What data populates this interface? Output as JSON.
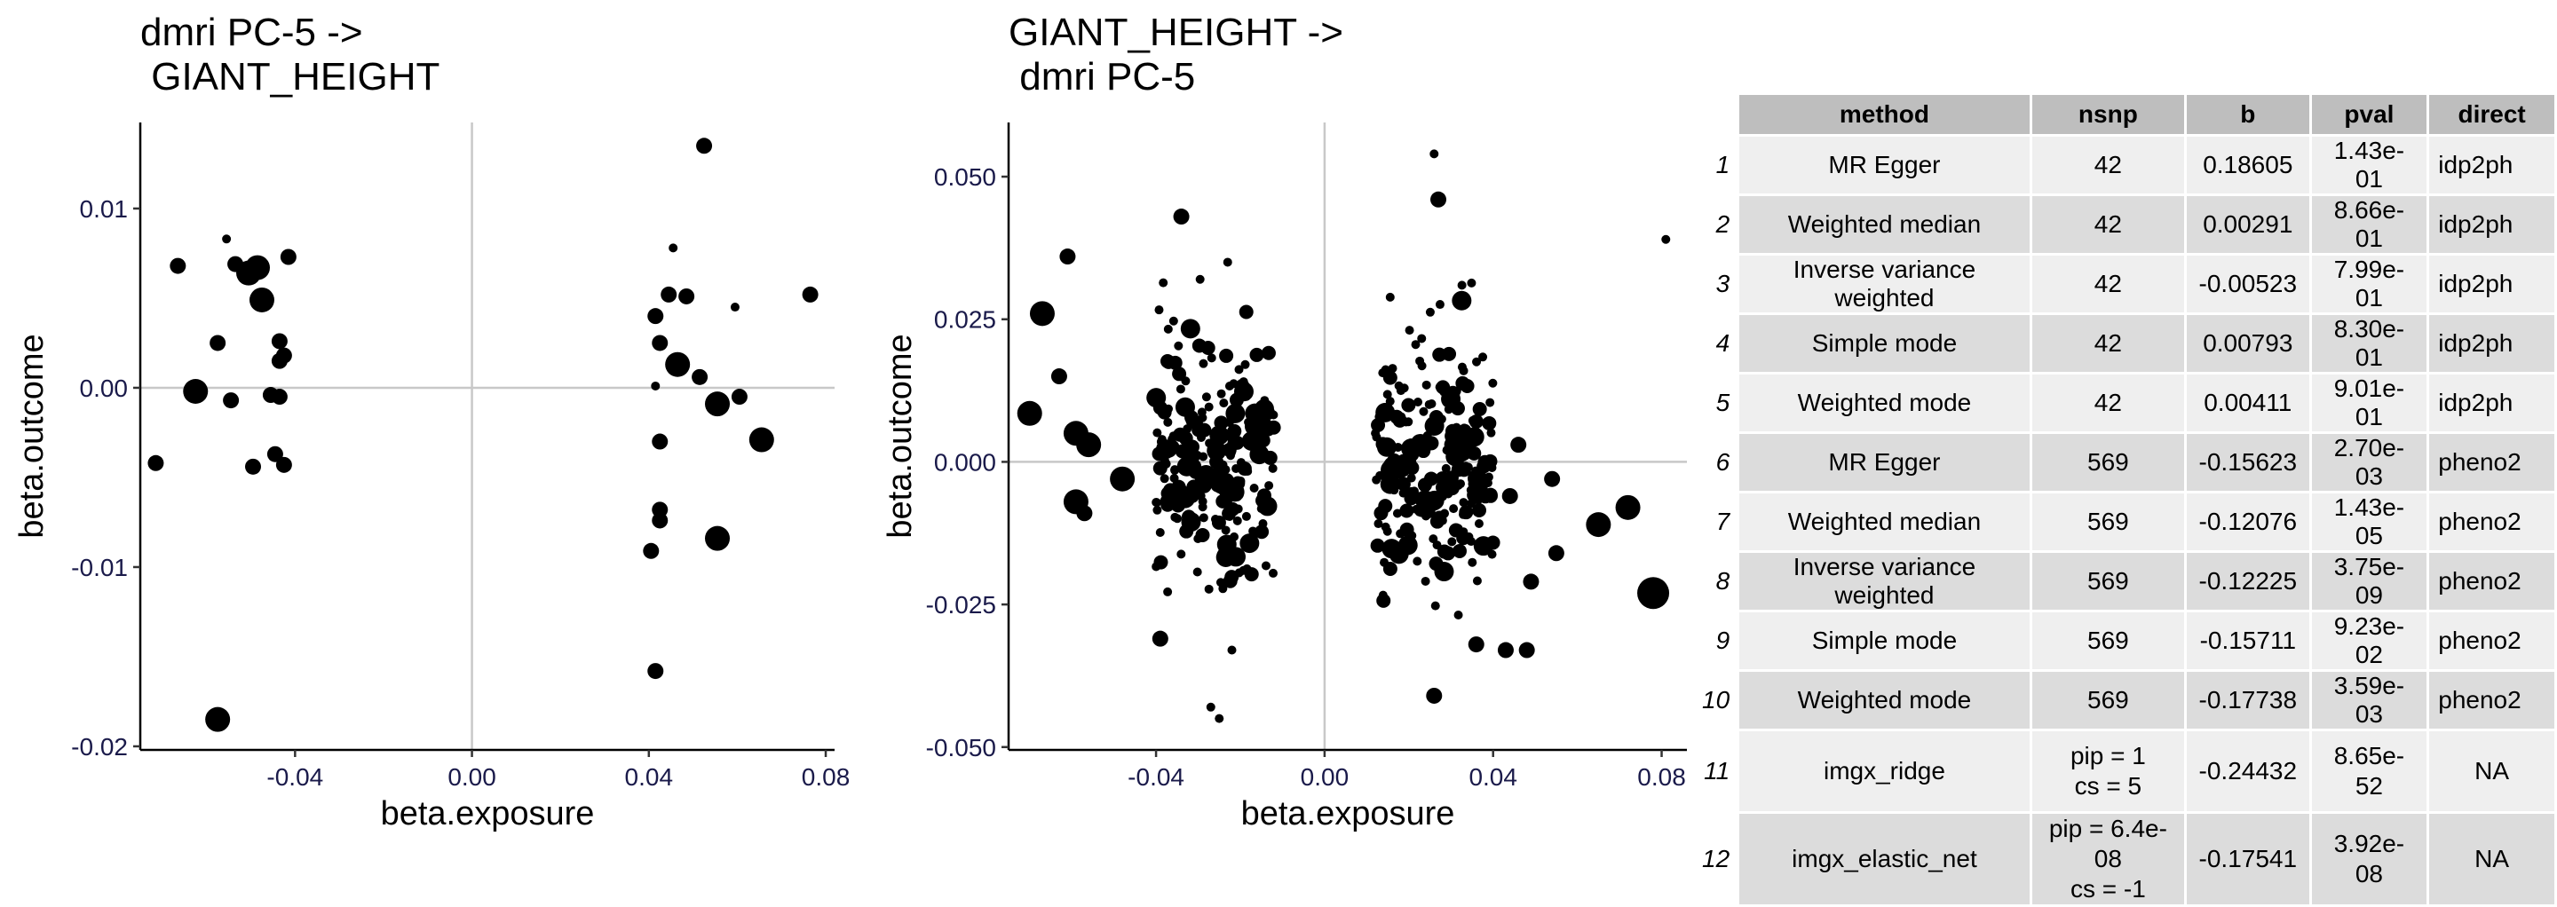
{
  "chart_data": [
    {
      "type": "scatter",
      "title": "dmri PC-5 ->\n GIANT_HEIGHT",
      "xlabel": "beta.exposure",
      "ylabel": "beta.outcome",
      "xlim": [
        -0.075,
        0.082
      ],
      "ylim": [
        -0.0202,
        0.0148
      ],
      "xticks": [
        -0.04,
        0.0,
        0.04,
        0.08
      ],
      "xtick_labels": [
        "-0.04",
        "0.00",
        "0.04",
        "0.08"
      ],
      "yticks": [
        -0.02,
        -0.01,
        0.0,
        0.01
      ],
      "ytick_labels": [
        "-0.02",
        "-0.01",
        "0.00",
        "0.01"
      ],
      "grid": false,
      "reference_lines": {
        "x": 0,
        "y": 0
      },
      "points": [
        {
          "x": -0.0575,
          "y": -0.0185,
          "s": 3
        },
        {
          "x": -0.0535,
          "y": 0.0069,
          "s": 2
        },
        {
          "x": -0.0665,
          "y": 0.0068,
          "s": 2
        },
        {
          "x": -0.0485,
          "y": 0.0067,
          "s": 3
        },
        {
          "x": -0.0505,
          "y": 0.0064,
          "s": 3
        },
        {
          "x": -0.0475,
          "y": 0.0049,
          "s": 3
        },
        {
          "x": -0.0415,
          "y": 0.0073,
          "s": 2
        },
        {
          "x": -0.0555,
          "y": 0.0083,
          "s": 1
        },
        {
          "x": -0.0575,
          "y": 0.0025,
          "s": 2
        },
        {
          "x": -0.0435,
          "y": 0.0026,
          "s": 2
        },
        {
          "x": -0.0425,
          "y": 0.0018,
          "s": 2
        },
        {
          "x": -0.0435,
          "y": 0.0015,
          "s": 2
        },
        {
          "x": -0.0625,
          "y": -0.0002,
          "s": 3
        },
        {
          "x": -0.0545,
          "y": -0.0007,
          "s": 2
        },
        {
          "x": -0.0455,
          "y": -0.0004,
          "s": 2
        },
        {
          "x": -0.0435,
          "y": -0.0005,
          "s": 2
        },
        {
          "x": -0.0715,
          "y": -0.0042,
          "s": 2
        },
        {
          "x": -0.0495,
          "y": -0.0044,
          "s": 2
        },
        {
          "x": -0.0445,
          "y": -0.0037,
          "s": 2
        },
        {
          "x": -0.0425,
          "y": -0.0043,
          "s": 2
        },
        {
          "x": 0.0525,
          "y": 0.0135,
          "s": 2
        },
        {
          "x": 0.0455,
          "y": 0.0078,
          "s": 1
        },
        {
          "x": 0.0765,
          "y": 0.0052,
          "s": 2
        },
        {
          "x": 0.0445,
          "y": 0.0052,
          "s": 2
        },
        {
          "x": 0.0485,
          "y": 0.0051,
          "s": 2
        },
        {
          "x": 0.0415,
          "y": 0.004,
          "s": 2
        },
        {
          "x": 0.0595,
          "y": 0.0045,
          "s": 1
        },
        {
          "x": 0.0425,
          "y": 0.0025,
          "s": 2
        },
        {
          "x": 0.0465,
          "y": 0.0013,
          "s": 3
        },
        {
          "x": 0.0515,
          "y": 0.0006,
          "s": 2
        },
        {
          "x": 0.0415,
          "y": 0.0001,
          "s": 1
        },
        {
          "x": 0.0555,
          "y": -0.0009,
          "s": 3
        },
        {
          "x": 0.0605,
          "y": -0.0005,
          "s": 2
        },
        {
          "x": 0.0425,
          "y": -0.003,
          "s": 2
        },
        {
          "x": 0.0655,
          "y": -0.0029,
          "s": 3
        },
        {
          "x": 0.0425,
          "y": -0.0068,
          "s": 2
        },
        {
          "x": 0.0425,
          "y": -0.0074,
          "s": 2
        },
        {
          "x": 0.0555,
          "y": -0.0084,
          "s": 3
        },
        {
          "x": 0.0405,
          "y": -0.0091,
          "s": 2
        },
        {
          "x": 0.0415,
          "y": -0.0158,
          "s": 2
        }
      ]
    },
    {
      "type": "scatter",
      "title": "GIANT_HEIGHT ->\n dmri PC-5",
      "xlabel": "beta.exposure",
      "ylabel": "beta.outcome",
      "xlim": [
        -0.075,
        0.086
      ],
      "ylim": [
        -0.0505,
        0.0595
      ],
      "xticks": [
        -0.04,
        0.0,
        0.04,
        0.08
      ],
      "xtick_labels": [
        "-0.04",
        "0.00",
        "0.04",
        "0.08"
      ],
      "yticks": [
        -0.05,
        -0.025,
        0.0,
        0.025,
        0.05
      ],
      "ytick_labels": [
        "-0.050",
        "-0.025",
        "0.000",
        "0.025",
        "0.050"
      ],
      "grid": false,
      "reference_lines": {
        "x": 0,
        "y": 0
      },
      "cluster_neg": {
        "x_range": [
          -0.04,
          -0.012
        ],
        "y_sd": 0.011
      },
      "cluster_pos": {
        "x_range": [
          0.012,
          0.04
        ],
        "y_sd": 0.011
      },
      "points": [
        {
          "x": -0.067,
          "y": 0.026,
          "s": 3
        },
        {
          "x": -0.061,
          "y": 0.036,
          "s": 2
        },
        {
          "x": -0.034,
          "y": 0.043,
          "s": 2
        },
        {
          "x": -0.023,
          "y": 0.035,
          "s": 1
        },
        {
          "x": -0.07,
          "y": 0.0085,
          "s": 3
        },
        {
          "x": -0.063,
          "y": 0.015,
          "s": 2
        },
        {
          "x": -0.059,
          "y": 0.005,
          "s": 3
        },
        {
          "x": -0.056,
          "y": 0.003,
          "s": 3
        },
        {
          "x": -0.059,
          "y": -0.007,
          "s": 3
        },
        {
          "x": -0.057,
          "y": -0.009,
          "s": 2
        },
        {
          "x": -0.048,
          "y": -0.003,
          "s": 3
        },
        {
          "x": -0.039,
          "y": -0.031,
          "s": 2
        },
        {
          "x": -0.027,
          "y": -0.043,
          "s": 1
        },
        {
          "x": -0.025,
          "y": -0.045,
          "s": 1
        },
        {
          "x": -0.022,
          "y": -0.033,
          "s": 1
        },
        {
          "x": 0.026,
          "y": 0.054,
          "s": 1
        },
        {
          "x": 0.027,
          "y": 0.046,
          "s": 2
        },
        {
          "x": 0.026,
          "y": -0.041,
          "s": 2
        },
        {
          "x": 0.036,
          "y": -0.032,
          "s": 2
        },
        {
          "x": 0.043,
          "y": -0.033,
          "s": 2
        },
        {
          "x": 0.048,
          "y": -0.033,
          "s": 2
        },
        {
          "x": 0.049,
          "y": -0.021,
          "s": 2
        },
        {
          "x": 0.055,
          "y": -0.016,
          "s": 2
        },
        {
          "x": 0.065,
          "y": -0.011,
          "s": 3
        },
        {
          "x": 0.072,
          "y": -0.008,
          "s": 3
        },
        {
          "x": 0.078,
          "y": -0.023,
          "s": 4
        },
        {
          "x": 0.081,
          "y": 0.039,
          "s": 1
        },
        {
          "x": 0.054,
          "y": -0.003,
          "s": 2
        },
        {
          "x": 0.046,
          "y": 0.003,
          "s": 2
        },
        {
          "x": 0.044,
          "y": -0.006,
          "s": 2
        }
      ]
    }
  ],
  "table": {
    "headers": [
      "method",
      "nsnp",
      "b",
      "pval",
      "direct"
    ],
    "rows": [
      {
        "idx": "1",
        "method": "MR Egger",
        "nsnp": "42",
        "b": "0.18605",
        "pval": "1.43e-01",
        "direct": "idp2ph"
      },
      {
        "idx": "2",
        "method": "Weighted median",
        "nsnp": "42",
        "b": "0.00291",
        "pval": "8.66e-01",
        "direct": "idp2ph"
      },
      {
        "idx": "3",
        "method": "Inverse variance weighted",
        "nsnp": "42",
        "b": "-0.00523",
        "pval": "7.99e-01",
        "direct": "idp2ph"
      },
      {
        "idx": "4",
        "method": "Simple mode",
        "nsnp": "42",
        "b": "0.00793",
        "pval": "8.30e-01",
        "direct": "idp2ph"
      },
      {
        "idx": "5",
        "method": "Weighted mode",
        "nsnp": "42",
        "b": "0.00411",
        "pval": "9.01e-01",
        "direct": "idp2ph"
      },
      {
        "idx": "6",
        "method": "MR Egger",
        "nsnp": "569",
        "b": "-0.15623",
        "pval": "2.70e-03",
        "direct": "pheno2"
      },
      {
        "idx": "7",
        "method": "Weighted median",
        "nsnp": "569",
        "b": "-0.12076",
        "pval": "1.43e-05",
        "direct": "pheno2"
      },
      {
        "idx": "8",
        "method": "Inverse variance weighted",
        "nsnp": "569",
        "b": "-0.12225",
        "pval": "3.75e-09",
        "direct": "pheno2"
      },
      {
        "idx": "9",
        "method": "Simple mode",
        "nsnp": "569",
        "b": "-0.15711",
        "pval": "9.23e-02",
        "direct": "pheno2"
      },
      {
        "idx": "10",
        "method": "Weighted mode",
        "nsnp": "569",
        "b": "-0.17738",
        "pval": "3.59e-03",
        "direct": "pheno2"
      },
      {
        "idx": "11",
        "method": "imgx_ridge",
        "nsnp1": "pip = 1",
        "nsnp2": "cs = 5",
        "b": "-0.24432",
        "pval": "8.65e-52",
        "direct": "NA"
      },
      {
        "idx": "12",
        "method": "imgx_elastic_net",
        "nsnp1": "pip = 6.4e-08",
        "nsnp2": "cs = -1",
        "b": "-0.17541",
        "pval": "3.92e-08",
        "direct": "NA"
      }
    ]
  }
}
